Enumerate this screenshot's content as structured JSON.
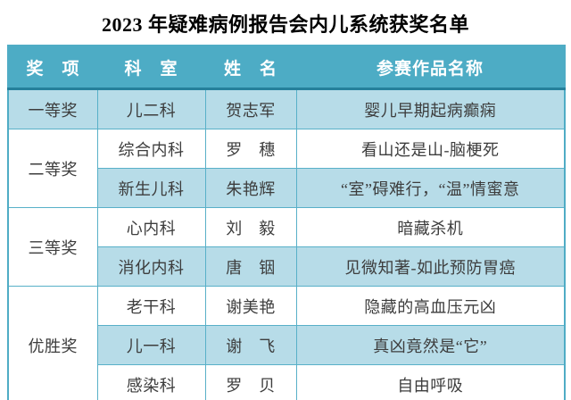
{
  "title": "2023 年疑难病例报告会内儿系统获奖名单",
  "colors": {
    "header_bg": "#4DACC5",
    "header_text": "#ffffff",
    "row_alt_bg": "#B7DCE8",
    "row_bg": "#ffffff",
    "grid_border": "#58B0C8",
    "header_divider": "#25809B",
    "body_text": "#3d3d3d",
    "title_text": "#000000"
  },
  "table": {
    "headers": [
      "奖　项",
      "科　室",
      "姓　名",
      "参赛作品名称"
    ],
    "groups": [
      {
        "prize": "一等奖",
        "rows": [
          {
            "dept": "儿二科",
            "name": "贺志军",
            "work": "婴儿早期起病癫痫"
          }
        ]
      },
      {
        "prize": "二等奖",
        "rows": [
          {
            "dept": "综合内科",
            "name": "罗　穗",
            "work": "看山还是山-脑梗死"
          },
          {
            "dept": "新生儿科",
            "name": "朱艳辉",
            "work": "“室”碍难行，“温”情蜜意"
          }
        ]
      },
      {
        "prize": "三等奖",
        "rows": [
          {
            "dept": "心内科",
            "name": "刘　毅",
            "work": "暗藏杀机"
          },
          {
            "dept": "消化内科",
            "name": "唐　铟",
            "work": "见微知著-如此预防胃癌"
          }
        ]
      },
      {
        "prize": "优胜奖",
        "rows": [
          {
            "dept": "老干科",
            "name": "谢美艳",
            "work": "隐藏的高血压元凶"
          },
          {
            "dept": "儿一科",
            "name": "谢　飞",
            "work": "真凶竟然是“它”"
          },
          {
            "dept": "感染科",
            "name": "罗　贝",
            "work": "自由呼吸"
          }
        ]
      }
    ]
  }
}
